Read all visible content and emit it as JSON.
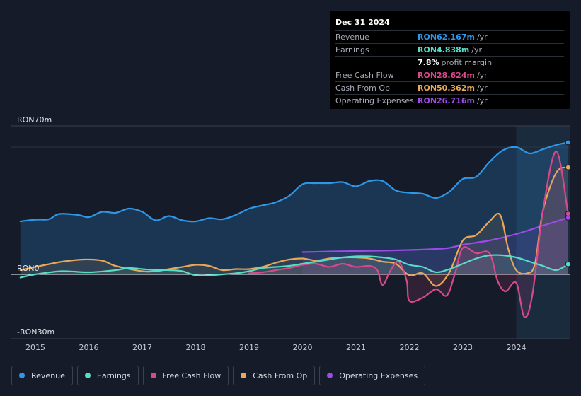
{
  "tooltip": {
    "date": "Dec 31 2024",
    "rows": [
      {
        "label": "Revenue",
        "value": "RON62.167m",
        "unit": "/yr",
        "color": "#2f97e8"
      },
      {
        "label": "Earnings",
        "value": "RON4.838m",
        "unit": "/yr",
        "color": "#57dcc6"
      },
      {
        "label": "",
        "value": "7.8%",
        "unit": "profit margin",
        "color": "#ffffff"
      },
      {
        "label": "Free Cash Flow",
        "value": "RON28.624m",
        "unit": "/yr",
        "color": "#d64a8a"
      },
      {
        "label": "Cash From Op",
        "value": "RON50.362m",
        "unit": "/yr",
        "color": "#e8a75a"
      },
      {
        "label": "Operating Expenses",
        "value": "RON26.716m",
        "unit": "/yr",
        "color": "#9c4ae8"
      }
    ]
  },
  "chart_data": {
    "type": "line",
    "title": "",
    "xlabel": "",
    "ylabel": "",
    "ylim": [
      -30,
      70
    ],
    "y_tick_labels": [
      "RON70m",
      "RON0",
      "-RON30m"
    ],
    "x_tick_labels": [
      "2015",
      "2016",
      "2017",
      "2018",
      "2019",
      "2020",
      "2021",
      "2022",
      "2023",
      "2024"
    ],
    "x_ticks": [
      2015,
      2016,
      2017,
      2018,
      2019,
      2020,
      2021,
      2022,
      2023,
      2024
    ],
    "xlim": [
      2014.55,
      2025.0
    ],
    "highlight_from": 2024.0,
    "series": [
      {
        "name": "Revenue",
        "color": "#2f97e8",
        "x": [
          2014.72,
          2015.0,
          2015.25,
          2015.45,
          2015.8,
          2016.0,
          2016.25,
          2016.5,
          2016.75,
          2017.0,
          2017.25,
          2017.5,
          2017.75,
          2018.0,
          2018.25,
          2018.5,
          2018.75,
          2019.0,
          2019.25,
          2019.5,
          2019.75,
          2020.0,
          2020.25,
          2020.5,
          2020.75,
          2021.0,
          2021.25,
          2021.5,
          2021.75,
          2022.0,
          2022.25,
          2022.5,
          2022.75,
          2023.0,
          2023.25,
          2023.5,
          2023.75,
          2024.0,
          2024.25,
          2024.5,
          2024.75,
          2024.97
        ],
        "values": [
          25.0,
          25.8,
          26.0,
          28.5,
          28.0,
          27.0,
          29.5,
          29.0,
          31.0,
          29.5,
          25.5,
          27.5,
          25.5,
          25.0,
          26.5,
          26.0,
          28.0,
          31.0,
          32.5,
          34.0,
          37.0,
          42.5,
          43.0,
          43.0,
          43.5,
          41.5,
          44.0,
          44.0,
          39.5,
          38.5,
          38.0,
          36.0,
          39.0,
          45.0,
          46.0,
          53.0,
          58.5,
          60.0,
          57.0,
          59.0,
          61.0,
          62.2
        ]
      },
      {
        "name": "Earnings",
        "color": "#57dcc6",
        "x": [
          2014.72,
          2015.0,
          2015.5,
          2016.0,
          2016.5,
          2016.75,
          2017.0,
          2017.25,
          2017.5,
          2017.75,
          2018.0,
          2018.25,
          2018.5,
          2018.75,
          2019.0,
          2019.25,
          2019.5,
          2019.75,
          2020.0,
          2020.25,
          2020.5,
          2020.75,
          2021.0,
          2021.25,
          2021.5,
          2021.75,
          2022.0,
          2022.25,
          2022.5,
          2022.75,
          2023.0,
          2023.25,
          2023.5,
          2023.75,
          2024.0,
          2024.25,
          2024.5,
          2024.75,
          2024.97
        ],
        "values": [
          -1.5,
          0.0,
          1.5,
          1.0,
          2.0,
          3.0,
          2.5,
          2.0,
          2.0,
          1.5,
          -0.5,
          -0.5,
          0.0,
          0.5,
          1.5,
          3.0,
          3.5,
          4.0,
          5.0,
          6.0,
          7.0,
          8.0,
          8.5,
          8.5,
          8.0,
          7.0,
          4.5,
          3.5,
          1.0,
          2.5,
          5.0,
          7.5,
          9.0,
          9.0,
          8.0,
          6.0,
          4.0,
          2.0,
          4.8
        ]
      },
      {
        "name": "Free Cash Flow",
        "color": "#d64a8a",
        "x": [
          2019.0,
          2019.25,
          2019.5,
          2019.75,
          2020.0,
          2020.25,
          2020.5,
          2020.75,
          2021.0,
          2021.25,
          2021.4,
          2021.5,
          2021.65,
          2021.8,
          2021.95,
          2022.0,
          2022.25,
          2022.5,
          2022.7,
          2022.85,
          2023.0,
          2023.25,
          2023.5,
          2023.65,
          2023.8,
          2024.0,
          2024.15,
          2024.3,
          2024.5,
          2024.75,
          2024.97
        ],
        "values": [
          0.5,
          1.0,
          2.0,
          3.0,
          4.5,
          5.0,
          3.5,
          5.0,
          3.5,
          4.0,
          2.0,
          -5.0,
          2.0,
          6.0,
          -3.0,
          -12.5,
          -11.0,
          -7.0,
          -10.0,
          0.0,
          12.5,
          10.0,
          10.0,
          -3.0,
          -8.0,
          -4.0,
          -20.0,
          -10.0,
          30.0,
          58.0,
          28.6
        ]
      },
      {
        "name": "Cash From Op",
        "color": "#e8a75a",
        "x": [
          2014.72,
          2015.0,
          2015.5,
          2015.9,
          2016.25,
          2016.5,
          2017.0,
          2017.25,
          2017.5,
          2017.75,
          2018.0,
          2018.25,
          2018.5,
          2018.75,
          2019.0,
          2019.25,
          2019.5,
          2019.75,
          2020.0,
          2020.25,
          2020.5,
          2020.75,
          2021.0,
          2021.25,
          2021.5,
          2021.75,
          2022.0,
          2022.25,
          2022.5,
          2022.75,
          2023.0,
          2023.25,
          2023.5,
          2023.7,
          2023.85,
          2024.0,
          2024.2,
          2024.35,
          2024.5,
          2024.75,
          2024.97
        ],
        "values": [
          2.0,
          3.5,
          6.0,
          7.0,
          6.5,
          4.0,
          1.5,
          1.5,
          2.5,
          3.5,
          4.5,
          4.0,
          2.0,
          2.5,
          2.5,
          3.5,
          5.5,
          7.0,
          7.5,
          6.5,
          7.5,
          8.0,
          8.0,
          7.5,
          6.0,
          5.0,
          -0.5,
          0.5,
          -5.5,
          1.0,
          16.0,
          18.5,
          25.0,
          28.0,
          12.0,
          2.0,
          0.5,
          5.0,
          30.0,
          48.0,
          50.4
        ]
      },
      {
        "name": "Operating Expenses",
        "color": "#9c4ae8",
        "x": [
          2020.0,
          2020.5,
          2021.0,
          2021.5,
          2022.0,
          2022.5,
          2022.75,
          2023.0,
          2023.5,
          2024.0,
          2024.5,
          2024.97
        ],
        "values": [
          10.5,
          10.8,
          11.0,
          11.2,
          11.5,
          12.0,
          12.5,
          14.0,
          16.0,
          19.0,
          23.0,
          26.7
        ]
      }
    ]
  },
  "legend": [
    {
      "label": "Revenue",
      "color": "#2f97e8"
    },
    {
      "label": "Earnings",
      "color": "#57dcc6"
    },
    {
      "label": "Free Cash Flow",
      "color": "#d64a8a"
    },
    {
      "label": "Cash From Op",
      "color": "#e8a75a"
    },
    {
      "label": "Operating Expenses",
      "color": "#9c4ae8"
    }
  ]
}
